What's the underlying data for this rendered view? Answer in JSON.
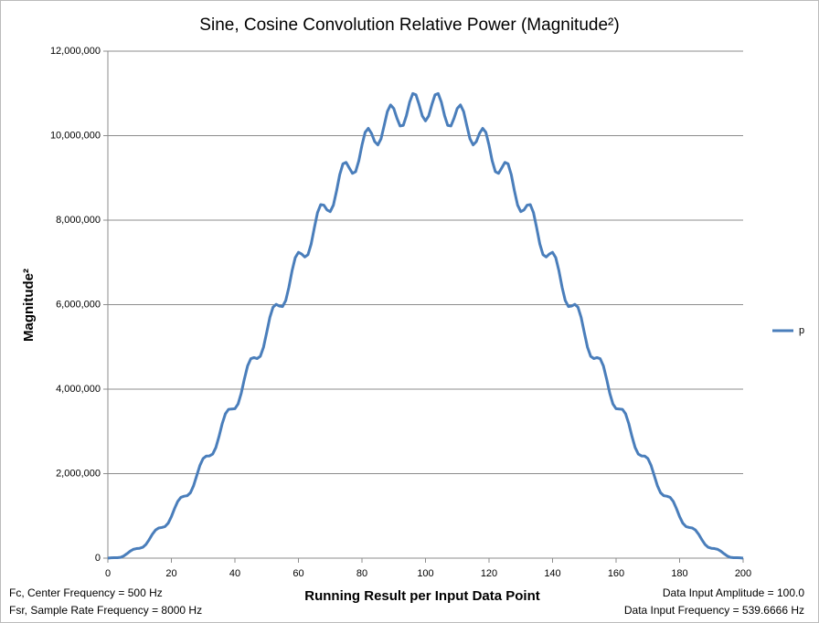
{
  "chart_data": {
    "type": "line",
    "title": "Sine, Cosine Convolution Relative Power (Magnitude²)",
    "x_label": "Running Result per Input Data Point",
    "y_label": "Magnitude²",
    "annotations": [
      "Fc, Center Frequency = 500 Hz",
      "Fsr, Sample Rate Frequency = 8000  Hz",
      "Data Input Amplitude = 100.0",
      "Data Input Frequency = 539.6666  Hz"
    ],
    "xlim": [
      0,
      200
    ],
    "xticks": [
      0,
      20,
      40,
      60,
      80,
      100,
      120,
      140,
      160,
      180,
      200
    ],
    "ylim": [
      0,
      12000000
    ],
    "yticks": [
      0,
      {
        "value": 2000000,
        "label": "2,000,000"
      },
      {
        "value": 4000000,
        "label": "4,000,000"
      },
      {
        "value": 6000000,
        "label": "6,000,000"
      },
      {
        "value": 8000000,
        "label": "8,000,000"
      },
      {
        "value": 10000000,
        "label": "10,000,000"
      },
      {
        "value": 12000000,
        "label": "12,000,000"
      }
    ],
    "grid": true,
    "legend": "right",
    "x": [
      0,
      1,
      2,
      3,
      4,
      5,
      6,
      7,
      8,
      9,
      10,
      11,
      12,
      13,
      14,
      15,
      16,
      17,
      18,
      19,
      20,
      21,
      22,
      23,
      24,
      25,
      26,
      27,
      28,
      29,
      30,
      31,
      32,
      33,
      34,
      35,
      36,
      37,
      38,
      39,
      40,
      41,
      42,
      43,
      44,
      45,
      46,
      47,
      48,
      49,
      50,
      51,
      52,
      53,
      54,
      55,
      56,
      57,
      58,
      59,
      60,
      61,
      62,
      63,
      64,
      65,
      66,
      67,
      68,
      69,
      70,
      71,
      72,
      73,
      74,
      75,
      76,
      77,
      78,
      79,
      80,
      81,
      82,
      83,
      84,
      85,
      86,
      87,
      88,
      89,
      90,
      91,
      92,
      93,
      94,
      95,
      96,
      97,
      98,
      99,
      100,
      101,
      102,
      103,
      104,
      105,
      106,
      107,
      108,
      109,
      110,
      111,
      112,
      113,
      114,
      115,
      116,
      117,
      118,
      119,
      120,
      121,
      122,
      123,
      124,
      125,
      126,
      127,
      128,
      129,
      130,
      131,
      132,
      133,
      134,
      135,
      136,
      137,
      138,
      139,
      140,
      141,
      142,
      143,
      144,
      145,
      146,
      147,
      148,
      149,
      150,
      151,
      152,
      153,
      154,
      155,
      156,
      157,
      158,
      159,
      160,
      161,
      162,
      163,
      164,
      165,
      166,
      167,
      168,
      169,
      170,
      171,
      172,
      173,
      174,
      175,
      176,
      177,
      178,
      179,
      180,
      181,
      182,
      183,
      184,
      185,
      186,
      187,
      188,
      189,
      190,
      191,
      192,
      193,
      194,
      195,
      196,
      197,
      198,
      199,
      200
    ],
    "series": [
      {
        "name": "p",
        "color": "#4a7ebb",
        "values": [
          0,
          7000,
          11000,
          11000,
          20000,
          52000,
          105000,
          164000,
          208000,
          226000,
          233000,
          257000,
          325000,
          437000,
          564000,
          664000,
          714000,
          726000,
          748000,
          828000,
          982000,
          1174000,
          1343000,
          1440000,
          1466000,
          1478000,
          1549000,
          1717000,
          1959000,
          2198000,
          2359000,
          2417000,
          2420000,
          2464000,
          2617000,
          2882000,
          3183000,
          3416000,
          3523000,
          3530000,
          3537000,
          3650000,
          3907000,
          4247000,
          4551000,
          4720000,
          4747000,
          4724000,
          4778000,
          4992000,
          5339000,
          5699000,
          5940000,
          6007000,
          5966000,
          5955000,
          6098000,
          6415000,
          6804000,
          7114000,
          7238000,
          7199000,
          7128000,
          7182000,
          7433000,
          7817000,
          8176000,
          8367000,
          8355000,
          8242000,
          8201000,
          8355000,
          8693000,
          9077000,
          9332000,
          9367000,
          9236000,
          9108000,
          9147000,
          9403000,
          9775000,
          10080000,
          10173000,
          10054000,
          9860000,
          9781000,
          9925000,
          10245000,
          10572000,
          10727000,
          10644000,
          10415000,
          10229000,
          10243000,
          10475000,
          10791000,
          10996000,
          10966000,
          10733000,
          10466000,
          10350000,
          10466000,
          10733000,
          10966000,
          10996000,
          10791000,
          10475000,
          10243000,
          10229000,
          10415000,
          10644000,
          10727000,
          10572000,
          10245000,
          9925000,
          9781000,
          9860000,
          10054000,
          10173000,
          10080000,
          9775000,
          9403000,
          9147000,
          9108000,
          9236000,
          9367000,
          9332000,
          9077000,
          8693000,
          8355000,
          8201000,
          8242000,
          8355000,
          8367000,
          8176000,
          7817000,
          7433000,
          7182000,
          7128000,
          7199000,
          7238000,
          7114000,
          6804000,
          6415000,
          6098000,
          5955000,
          5966000,
          6007000,
          5940000,
          5699000,
          5339000,
          4992000,
          4778000,
          4724000,
          4747000,
          4720000,
          4551000,
          4247000,
          3907000,
          3650000,
          3537000,
          3530000,
          3523000,
          3416000,
          3183000,
          2882000,
          2617000,
          2464000,
          2420000,
          2417000,
          2359000,
          2198000,
          1959000,
          1717000,
          1549000,
          1478000,
          1466000,
          1440000,
          1343000,
          1174000,
          982000,
          828000,
          748000,
          726000,
          714000,
          664000,
          564000,
          437000,
          325000,
          257000,
          233000,
          226000,
          208000,
          164000,
          105000,
          52000,
          20000,
          11000,
          11000,
          7000,
          0
        ]
      }
    ]
  }
}
